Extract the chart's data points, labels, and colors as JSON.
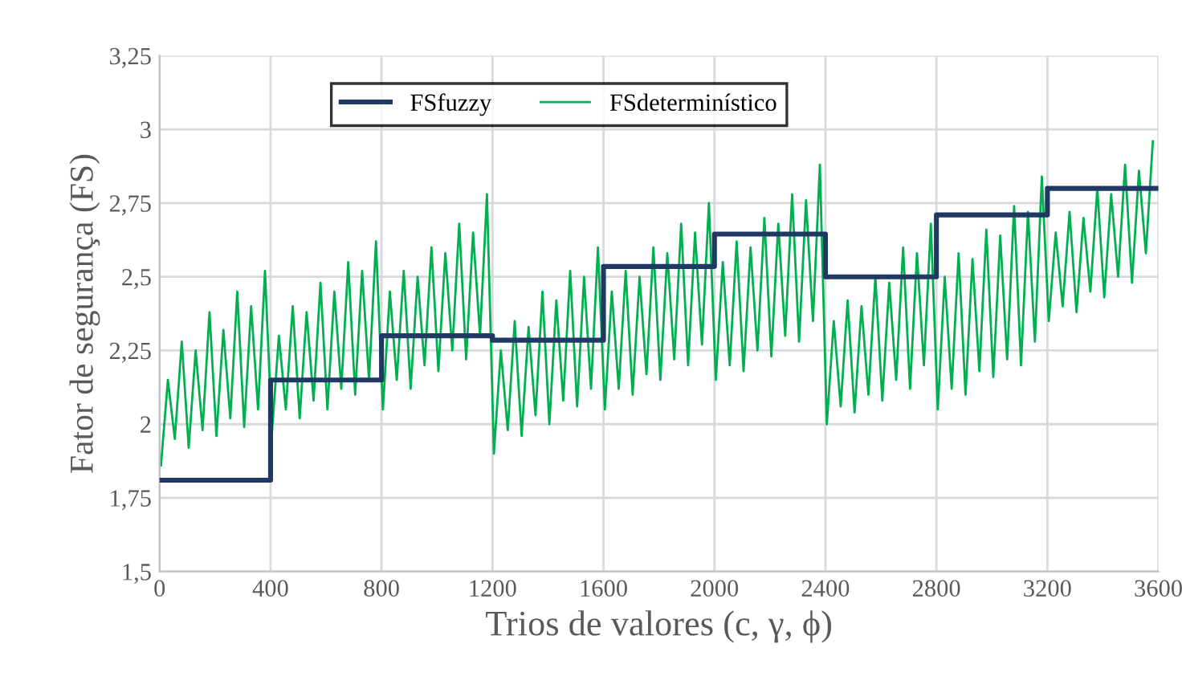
{
  "chart_data": {
    "type": "line",
    "xlabel": "Trios de valores (c, γ, ϕ)",
    "ylabel": "Fator de segurança (FS)",
    "xlim": [
      0,
      3600
    ],
    "xticks": [
      0,
      400,
      800,
      1200,
      1600,
      2000,
      2400,
      2800,
      3200,
      3600
    ],
    "ylim": [
      1.5,
      3.25
    ],
    "yticks": [
      {
        "value": 1.5,
        "label": "1,5"
      },
      {
        "value": 1.75,
        "label": "1,75"
      },
      {
        "value": 2,
        "label": "2"
      },
      {
        "value": 2.25,
        "label": "2,25"
      },
      {
        "value": 2.5,
        "label": "2,5"
      },
      {
        "value": 2.75,
        "label": "2,75"
      },
      {
        "value": 3,
        "label": "3"
      },
      {
        "value": 3.25,
        "label": "3,25"
      }
    ],
    "grid": true,
    "legend": "top",
    "series": [
      {
        "name": "FSfuzzy",
        "type": "step",
        "color": "#203864",
        "x": [
          0,
          400,
          800,
          1200,
          1600,
          2000,
          2400,
          2800,
          3200,
          3600
        ],
        "values": [
          1.81,
          2.15,
          2.3,
          2.285,
          2.535,
          2.645,
          2.5,
          2.71,
          2.8,
          2.8
        ]
      },
      {
        "name": "FSdeterminístico",
        "color": "#00b050",
        "x": [
          5,
          30,
          55,
          80,
          105,
          130,
          155,
          180,
          205,
          230,
          255,
          280,
          305,
          330,
          355,
          380,
          405,
          430,
          455,
          480,
          505,
          530,
          555,
          580,
          605,
          630,
          655,
          680,
          705,
          730,
          755,
          780,
          805,
          830,
          855,
          880,
          905,
          930,
          955,
          980,
          1005,
          1030,
          1055,
          1080,
          1105,
          1130,
          1155,
          1180,
          1205,
          1230,
          1255,
          1280,
          1305,
          1330,
          1355,
          1380,
          1405,
          1430,
          1455,
          1480,
          1505,
          1530,
          1555,
          1580,
          1605,
          1630,
          1655,
          1680,
          1705,
          1730,
          1755,
          1780,
          1805,
          1830,
          1855,
          1880,
          1905,
          1930,
          1955,
          1980,
          2005,
          2030,
          2055,
          2080,
          2105,
          2130,
          2155,
          2180,
          2205,
          2230,
          2255,
          2280,
          2305,
          2330,
          2355,
          2380,
          2405,
          2430,
          2455,
          2480,
          2505,
          2530,
          2555,
          2580,
          2605,
          2630,
          2655,
          2680,
          2705,
          2730,
          2755,
          2780,
          2805,
          2830,
          2855,
          2880,
          2905,
          2930,
          2955,
          2980,
          3005,
          3030,
          3055,
          3080,
          3105,
          3130,
          3155,
          3180,
          3205,
          3230,
          3255,
          3280,
          3305,
          3330,
          3355,
          3380,
          3405,
          3430,
          3455,
          3480,
          3505,
          3530,
          3555,
          3580
        ],
        "values": [
          1.86,
          2.15,
          1.95,
          2.28,
          1.92,
          2.25,
          1.98,
          2.38,
          1.96,
          2.32,
          2.02,
          2.45,
          1.99,
          2.4,
          2.05,
          2.52,
          1.97,
          2.3,
          2.05,
          2.4,
          2.02,
          2.38,
          2.08,
          2.48,
          2.05,
          2.45,
          2.12,
          2.55,
          2.1,
          2.52,
          2.15,
          2.62,
          2.05,
          2.45,
          2.15,
          2.52,
          2.12,
          2.5,
          2.2,
          2.6,
          2.18,
          2.58,
          2.25,
          2.68,
          2.22,
          2.65,
          2.3,
          2.78,
          1.9,
          2.25,
          1.98,
          2.35,
          1.96,
          2.33,
          2.03,
          2.45,
          2.0,
          2.42,
          2.08,
          2.52,
          2.06,
          2.5,
          2.12,
          2.6,
          2.05,
          2.45,
          2.12,
          2.52,
          2.1,
          2.5,
          2.17,
          2.6,
          2.15,
          2.58,
          2.22,
          2.68,
          2.2,
          2.65,
          2.27,
          2.75,
          2.15,
          2.55,
          2.2,
          2.62,
          2.18,
          2.6,
          2.25,
          2.7,
          2.23,
          2.68,
          2.3,
          2.78,
          2.28,
          2.76,
          2.35,
          2.88,
          2.0,
          2.35,
          2.06,
          2.42,
          2.04,
          2.4,
          2.1,
          2.5,
          2.08,
          2.48,
          2.15,
          2.6,
          2.12,
          2.58,
          2.2,
          2.68,
          2.05,
          2.5,
          2.12,
          2.58,
          2.1,
          2.56,
          2.18,
          2.66,
          2.16,
          2.64,
          2.22,
          2.74,
          2.2,
          2.72,
          2.28,
          2.84,
          2.35,
          2.65,
          2.4,
          2.72,
          2.38,
          2.7,
          2.45,
          2.8,
          2.43,
          2.78,
          2.5,
          2.88,
          2.48,
          2.86,
          2.58,
          2.96
        ]
      }
    ]
  }
}
